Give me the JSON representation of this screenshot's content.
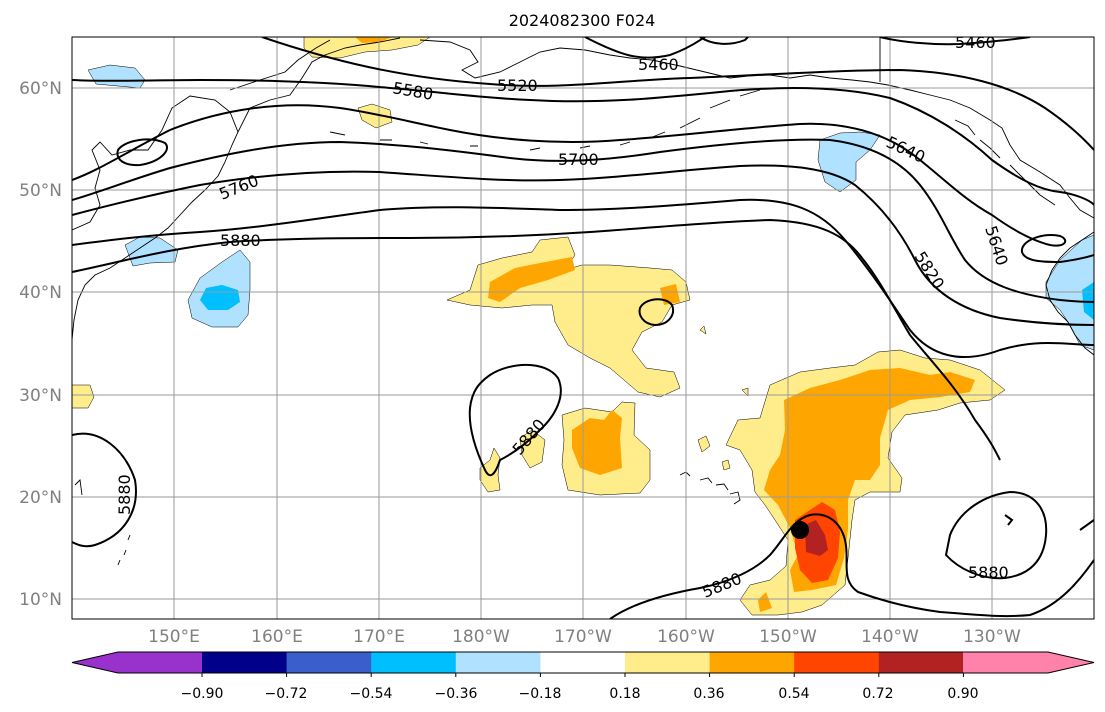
{
  "title": "2024082300 F024",
  "lat_labels": [
    "10°N",
    "20°N",
    "30°N",
    "40°N",
    "50°N",
    "60°N"
  ],
  "lon_labels": [
    "150°E",
    "160°E",
    "170°E",
    "180°W",
    "170°W",
    "160°W",
    "150°W",
    "140°W",
    "130°W"
  ],
  "contour_labels": [
    "5460",
    "5460",
    "5520",
    "5580",
    "5640",
    "5640",
    "5700",
    "5760",
    "5820",
    "5880",
    "5880",
    "5880",
    "5880",
    "5880"
  ],
  "colorbar": {
    "tick_labels": [
      "−0.90",
      "−0.72",
      "−0.54",
      "−0.36",
      "−0.18",
      "0.18",
      "0.36",
      "0.54",
      "0.72",
      "0.90"
    ],
    "colors": [
      "#9932CC",
      "#00008B",
      "#3A5FCD",
      "#00BFFF",
      "#B0E2FF",
      "#FFFFFF",
      "#FFEC8B",
      "#FFA500",
      "#FF4500",
      "#B22222",
      "#FF82AB"
    ]
  },
  "shading_colors": {
    "light_blue": "#B0E2FF",
    "blue": "#00BFFF",
    "light_yellow": "#FFEC8B",
    "orange": "#FFA500",
    "red_orange": "#FF4500",
    "dark_red": "#B22222"
  },
  "marker": "storm-center-dot"
}
